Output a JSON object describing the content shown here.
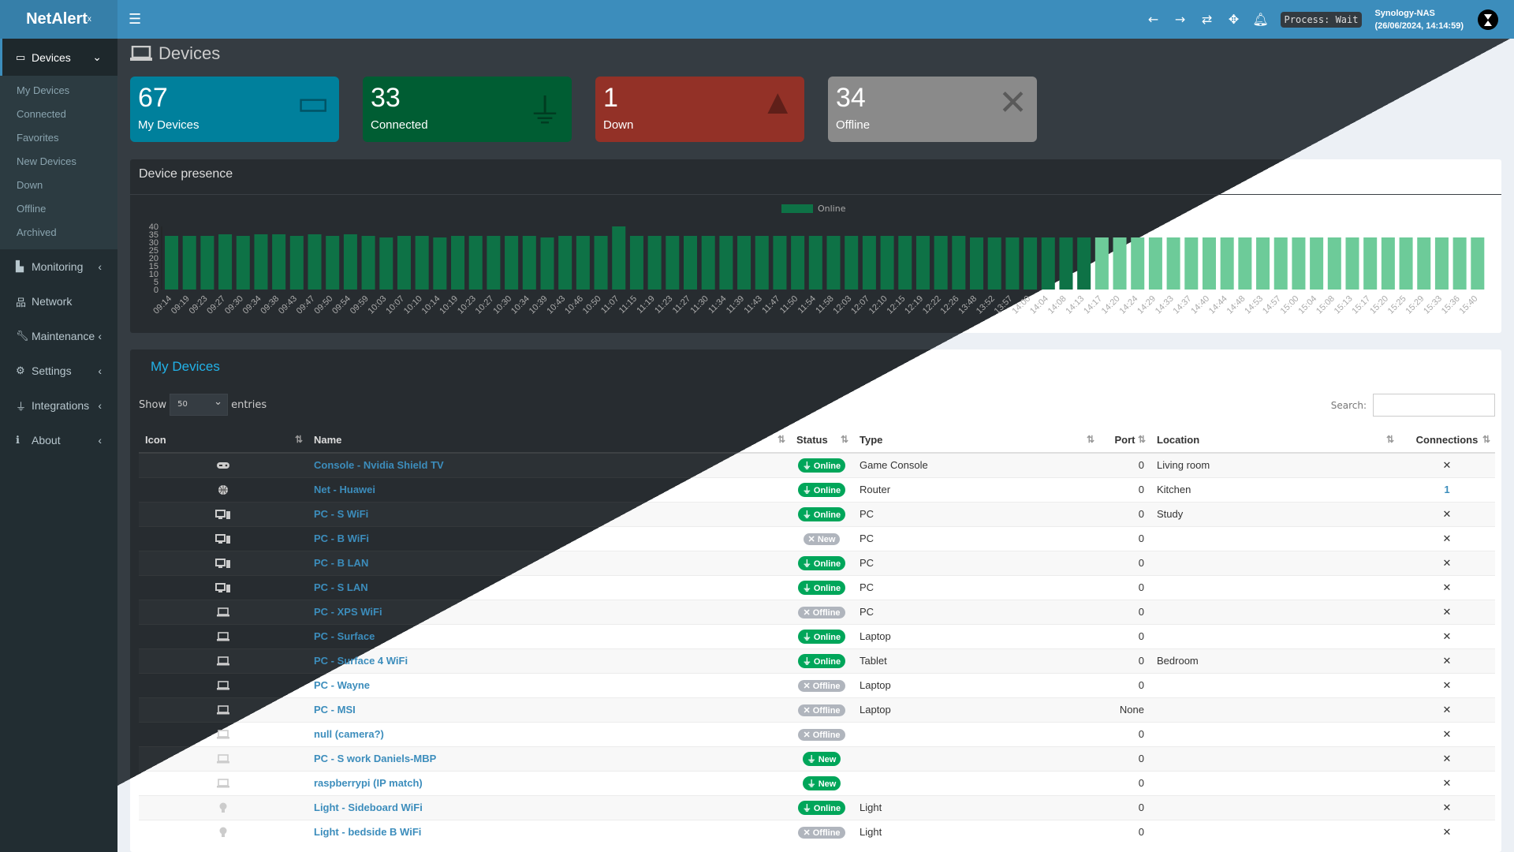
{
  "app": {
    "logo": "NetAlert",
    "logo_sup": "x",
    "menu_icon": "hamburger-icon"
  },
  "navbar": {
    "icons": [
      "arrow-left-icon",
      "arrow-right-icon",
      "refresh-icon",
      "move-icon",
      "bell-icon"
    ],
    "process": "Process: Wait",
    "host": "Synology-NAS",
    "datetime": "(26/06/2024, 14:14:59)"
  },
  "sidebar": {
    "active": {
      "label": "Devices",
      "icon": "laptop-icon"
    },
    "sub": [
      "My Devices",
      "Connected",
      "Favorites",
      "New Devices",
      "Down",
      "Offline",
      "Archived"
    ],
    "items": [
      {
        "label": "Monitoring",
        "icon": "chart-icon",
        "chev": true
      },
      {
        "label": "Network",
        "icon": "network-icon",
        "chev": false
      },
      {
        "label": "Maintenance",
        "icon": "wrench-icon",
        "chev": true
      },
      {
        "label": "Settings",
        "icon": "gear-icon",
        "chev": true
      },
      {
        "label": "Integrations",
        "icon": "plug-icon",
        "chev": true
      },
      {
        "label": "About",
        "icon": "info-icon",
        "chev": true
      }
    ]
  },
  "page_title": "Devices",
  "cards": [
    {
      "num": "67",
      "label": "My Devices",
      "color": "#00809c",
      "icon": "laptop-icon"
    },
    {
      "num": "33",
      "label": "Connected",
      "color": "#005d33",
      "icon": "plug-icon"
    },
    {
      "num": "1",
      "label": "Down",
      "color": "#933127",
      "icon": "warning-icon"
    },
    {
      "num": "34",
      "label": "Offline",
      "color": "#8a8a8a",
      "icon": "close-icon"
    }
  ],
  "presence": {
    "title": "Device presence"
  },
  "chart_data": {
    "type": "bar",
    "legend": [
      "Online"
    ],
    "legend_placement": "top-center",
    "ylim": [
      0,
      40
    ],
    "yticks": [
      0,
      5,
      10,
      15,
      20,
      25,
      30,
      35,
      40
    ],
    "categories": [
      "09:14",
      "09:19",
      "09:23",
      "09:27",
      "09:30",
      "09:34",
      "09:38",
      "09:43",
      "09:47",
      "09:50",
      "09:54",
      "09:59",
      "10:03",
      "10:07",
      "10:10",
      "10:14",
      "10:19",
      "10:23",
      "10:27",
      "10:30",
      "10:34",
      "10:39",
      "10:43",
      "10:46",
      "10:50",
      "11:07",
      "11:15",
      "11:19",
      "11:23",
      "11:27",
      "11:30",
      "11:34",
      "11:39",
      "11:43",
      "11:47",
      "11:50",
      "11:54",
      "11:58",
      "12:03",
      "12:07",
      "12:10",
      "12:15",
      "12:19",
      "12:22",
      "12:26",
      "13:48",
      "13:52",
      "13:57",
      "14:00",
      "14:04",
      "14:08",
      "14:13",
      "14:17",
      "14:20",
      "14:24",
      "14:29",
      "14:33",
      "14:37",
      "14:40",
      "14:44",
      "14:48",
      "14:53",
      "14:57",
      "15:00",
      "15:04",
      "15:08",
      "15:13",
      "15:17",
      "15:20",
      "15:25",
      "15:29",
      "15:33",
      "15:36",
      "15:40"
    ],
    "series": [
      {
        "name": "Online",
        "values": [
          34,
          34,
          34,
          35,
          34,
          35,
          35,
          34,
          35,
          34,
          35,
          34,
          33,
          34,
          34,
          33,
          34,
          34,
          34,
          34,
          34,
          33,
          34,
          34,
          34,
          40,
          34,
          34,
          34,
          34,
          34,
          34,
          34,
          34,
          34,
          34,
          34,
          34,
          34,
          34,
          34,
          34,
          34,
          34,
          34,
          33,
          33,
          33,
          33,
          33,
          33,
          33,
          33,
          33,
          33,
          33,
          33,
          33,
          33,
          33,
          33,
          33,
          33,
          33,
          33,
          33,
          33,
          33,
          33,
          33,
          33,
          33,
          33,
          33
        ]
      }
    ],
    "colors": {
      "dark": "#0e7246",
      "light": "#6dcb99"
    }
  },
  "devices": {
    "title": "My Devices",
    "show": "Show",
    "entries": "entries",
    "page_size": "50",
    "search_label": "Search:",
    "search_value": "",
    "columns": [
      "Icon",
      "Name",
      "Status",
      "Type",
      "Port",
      "Location",
      "Connections"
    ],
    "rows": [
      {
        "icon": "gamepad-icon",
        "name": "Console - Nvidia Shield TV",
        "status": "Online",
        "st": "on",
        "type": "Game Console",
        "port": "0",
        "location": "Living room",
        "conn": "✕"
      },
      {
        "icon": "globe-icon",
        "name": "Net - Huawei",
        "status": "Online",
        "st": "on",
        "type": "Router",
        "port": "0",
        "location": "Kitchen",
        "conn": "1"
      },
      {
        "icon": "desktop-icon",
        "name": "PC - S WiFi",
        "status": "Online",
        "st": "on",
        "type": "PC",
        "port": "0",
        "location": "Study",
        "conn": "✕"
      },
      {
        "icon": "desktop-icon",
        "name": "PC - B WiFi",
        "status": "New",
        "st": "off",
        "type": "PC",
        "port": "0",
        "location": "",
        "conn": "✕"
      },
      {
        "icon": "desktop-icon",
        "name": "PC - B LAN",
        "status": "Online",
        "st": "on",
        "type": "PC",
        "port": "0",
        "location": "",
        "conn": "✕"
      },
      {
        "icon": "desktop-icon",
        "name": "PC - S LAN",
        "status": "Online",
        "st": "on",
        "type": "PC",
        "port": "0",
        "location": "",
        "conn": "✕"
      },
      {
        "icon": "laptop-icon",
        "name": "PC - XPS WiFi",
        "status": "Offline",
        "st": "off",
        "type": "PC",
        "port": "0",
        "location": "",
        "conn": "✕"
      },
      {
        "icon": "laptop-icon",
        "name": "PC - Surface",
        "status": "Online",
        "st": "on",
        "type": "Laptop",
        "port": "0",
        "location": "",
        "conn": "✕"
      },
      {
        "icon": "laptop-icon",
        "name": "PC - Surface 4 WiFi",
        "status": "Online",
        "st": "on",
        "type": "Tablet",
        "port": "0",
        "location": "Bedroom",
        "conn": "✕"
      },
      {
        "icon": "laptop-icon",
        "name": "PC - Wayne",
        "status": "Offline",
        "st": "off",
        "type": "Laptop",
        "port": "0",
        "location": "",
        "conn": "✕"
      },
      {
        "icon": "laptop-icon",
        "name": "PC - MSI",
        "status": "Offline",
        "st": "off",
        "type": "Laptop",
        "port": "None",
        "location": "",
        "conn": "✕"
      },
      {
        "icon": "laptop-icon",
        "name": "null (camera?)",
        "status": "Offline",
        "st": "off",
        "type": "",
        "port": "0",
        "location": "",
        "conn": "✕"
      },
      {
        "icon": "laptop-icon",
        "name": "PC - S work Daniels-MBP",
        "status": "New",
        "st": "on",
        "type": "",
        "port": "0",
        "location": "",
        "conn": "✕"
      },
      {
        "icon": "laptop-icon",
        "name": "raspberrypi (IP match)",
        "status": "New",
        "st": "on",
        "type": "",
        "port": "0",
        "location": "",
        "conn": "✕"
      },
      {
        "icon": "lightbulb-icon",
        "name": "Light - Sideboard WiFi",
        "status": "Online",
        "st": "on",
        "type": "Light",
        "port": "0",
        "location": "",
        "conn": "✕"
      },
      {
        "icon": "lightbulb-icon",
        "name": "Light - bedside B WiFi",
        "status": "Offline",
        "st": "off",
        "type": "Light",
        "port": "0",
        "location": "",
        "conn": "✕"
      }
    ]
  }
}
